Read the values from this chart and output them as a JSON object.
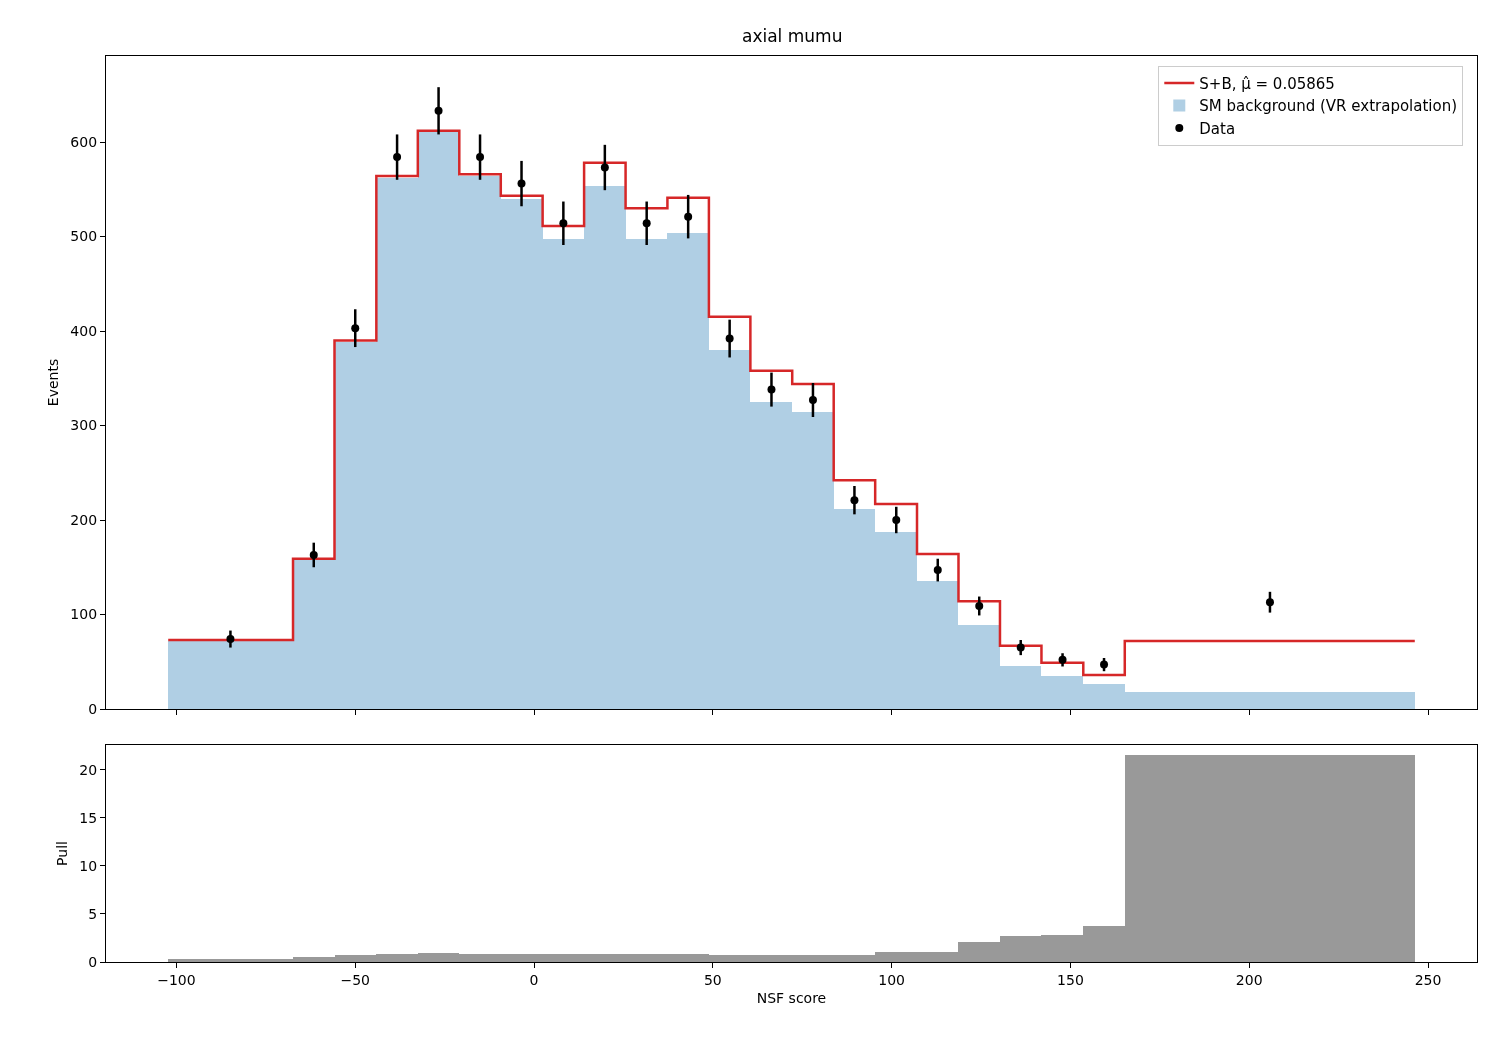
{
  "chart_data": [
    {
      "type": "histogram",
      "title": "axial mumu",
      "ylabel": "Events",
      "bins": [
        -102.3,
        -67.4,
        -55.8,
        -44.1,
        -32.5,
        -20.9,
        -9.3,
        2.4,
        14.0,
        25.6,
        37.3,
        48.9,
        60.5,
        72.2,
        83.8,
        95.4,
        107.1,
        118.7,
        130.3,
        141.9,
        153.6,
        165.2,
        246.3
      ],
      "series": [
        {
          "type": "step",
          "name": "S+B, μ̂ = 0.05865",
          "color": "#d62728",
          "x": [
            -102.3,
            -67.4,
            -55.8,
            -44.1,
            -32.5,
            -20.9,
            -9.3,
            2.4,
            14.0,
            25.6,
            37.3,
            48.9,
            60.5,
            72.2,
            83.8,
            95.4,
            107.1,
            118.7,
            130.3,
            141.9,
            153.6,
            165.2,
            246.3
          ],
          "values": [
            73,
            159,
            390,
            564,
            612,
            566,
            543,
            511,
            578,
            530,
            541,
            415,
            358,
            344,
            242,
            217,
            164,
            114,
            67,
            49,
            36,
            72,
            72
          ]
        },
        {
          "name": "SM background (VR extrapolation)",
          "color": "#b0cfe4",
          "values": [
            72,
            159,
            388,
            562,
            611,
            564,
            540,
            497,
            553,
            497,
            504,
            380,
            325,
            314,
            212,
            187,
            135,
            89,
            45,
            35,
            26,
            18
          ]
        },
        {
          "type": "scatter",
          "name": "Data",
          "color": "#000000",
          "marker": "circle",
          "x": [
            -84.9,
            -61.6,
            -50.0,
            -38.3,
            -26.7,
            -15.1,
            -3.5,
            8.2,
            19.8,
            31.5,
            43.1,
            54.7,
            66.4,
            78.0,
            89.6,
            101.3,
            112.9,
            124.5,
            136.1,
            147.8,
            159.4,
            205.8
          ],
          "values": [
            74,
            163,
            403,
            584,
            633,
            584,
            556,
            514,
            573,
            514,
            521,
            392,
            338,
            327,
            221,
            200,
            147,
            109,
            65,
            52,
            47,
            113
          ],
          "errors": [
            9,
            13,
            20,
            24,
            25,
            24,
            24,
            23,
            24,
            23,
            23,
            20,
            18,
            18,
            15,
            14,
            12,
            10,
            8,
            7,
            7,
            11
          ]
        }
      ],
      "xlim": [
        -119.7,
        263.7
      ],
      "ylim": [
        0,
        691
      ],
      "yticks": [
        0,
        100,
        200,
        300,
        400,
        500,
        600
      ],
      "xticks": [
        -100,
        -50,
        0,
        50,
        100,
        150,
        200,
        250
      ],
      "tick_labels": "y",
      "legend": "top right"
    },
    {
      "type": "histogram",
      "xlabel": "NSF score",
      "ylabel": "Pull",
      "bins": [
        -102.3,
        -67.4,
        -55.8,
        -44.1,
        -32.5,
        -20.9,
        -9.3,
        2.4,
        14.0,
        25.6,
        37.3,
        48.9,
        60.5,
        72.2,
        83.8,
        95.4,
        107.1,
        118.7,
        130.3,
        141.9,
        153.6,
        165.2,
        246.3
      ],
      "series": [
        {
          "color": "#999999",
          "values": [
            0.3,
            0.5,
            0.7,
            0.8,
            0.9,
            0.8,
            0.8,
            0.8,
            0.8,
            0.8,
            0.8,
            0.7,
            0.7,
            0.7,
            0.7,
            1.0,
            1.0,
            2.1,
            2.7,
            2.8,
            3.8,
            21.6
          ]
        }
      ],
      "xlim": [
        -119.7,
        263.7
      ],
      "ylim": [
        0,
        22.6
      ],
      "yticks": [
        0,
        5,
        10,
        15,
        20
      ],
      "xticks": [
        -100,
        -50,
        0,
        50,
        100,
        150,
        200,
        250
      ],
      "legend": false
    }
  ]
}
